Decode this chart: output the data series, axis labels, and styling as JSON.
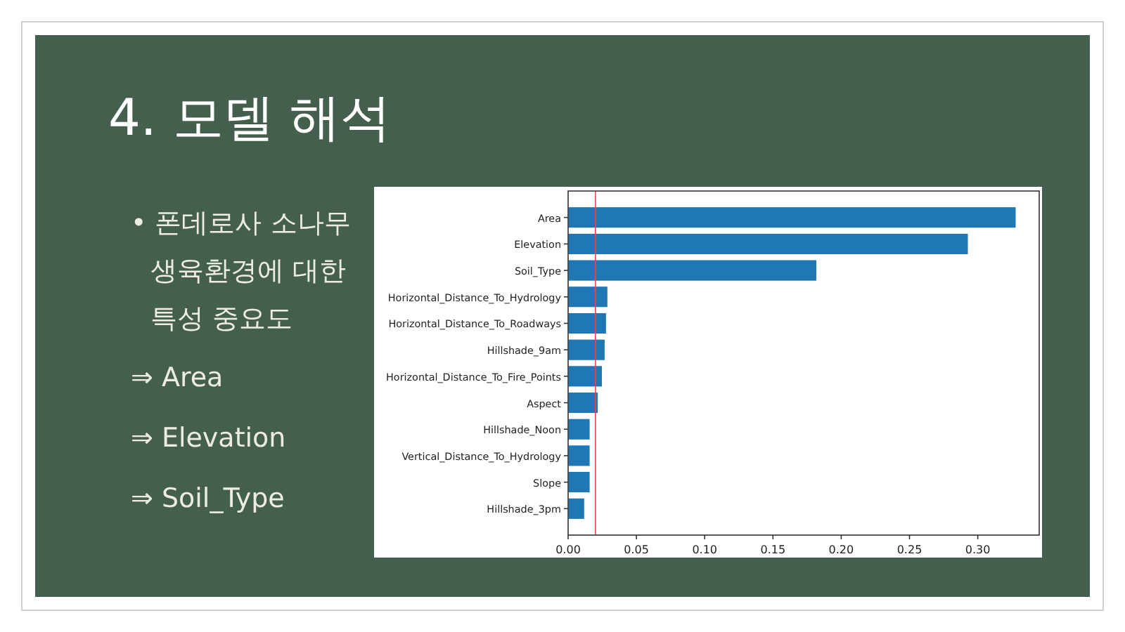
{
  "chart_data": [
    {
      "type": "other",
      "title": "4. 모델 해석",
      "annotations": [
        "• 폰데로사 소나무 생육환경에 대한 특성 중요도",
        "⇒ Area",
        "⇒ Elevation",
        "⇒ Soil_Type"
      ]
    },
    {
      "type": "bar",
      "orientation": "horizontal",
      "categories": [
        "Area",
        "Elevation",
        "Soil_Type",
        "Horizontal_Distance_To_Hydrology",
        "Horizontal_Distance_To_Roadways",
        "Hillshade_9am",
        "Horizontal_Distance_To_Fire_Points",
        "Aspect",
        "Hillshade_Noon",
        "Vertical_Distance_To_Hydrology",
        "Slope",
        "Hillshade_3pm"
      ],
      "values": [
        0.328,
        0.293,
        0.182,
        0.029,
        0.028,
        0.027,
        0.025,
        0.022,
        0.016,
        0.016,
        0.016,
        0.012
      ],
      "color": "#1f77b4",
      "xlim": [
        0,
        0.345
      ],
      "xticks": [
        {
          "value": 0,
          "label": "0.00"
        },
        0.05,
        {
          "value": 0.1,
          "label": "0.10"
        },
        0.15,
        {
          "value": 0.2,
          "label": "0.20"
        },
        0.25,
        {
          "value": 0.3,
          "label": "0.30"
        }
      ],
      "ref_lines": [
        {
          "axis": "x",
          "value": 0.02,
          "color": "#e8474a"
        }
      ],
      "grid": false
    }
  ]
}
